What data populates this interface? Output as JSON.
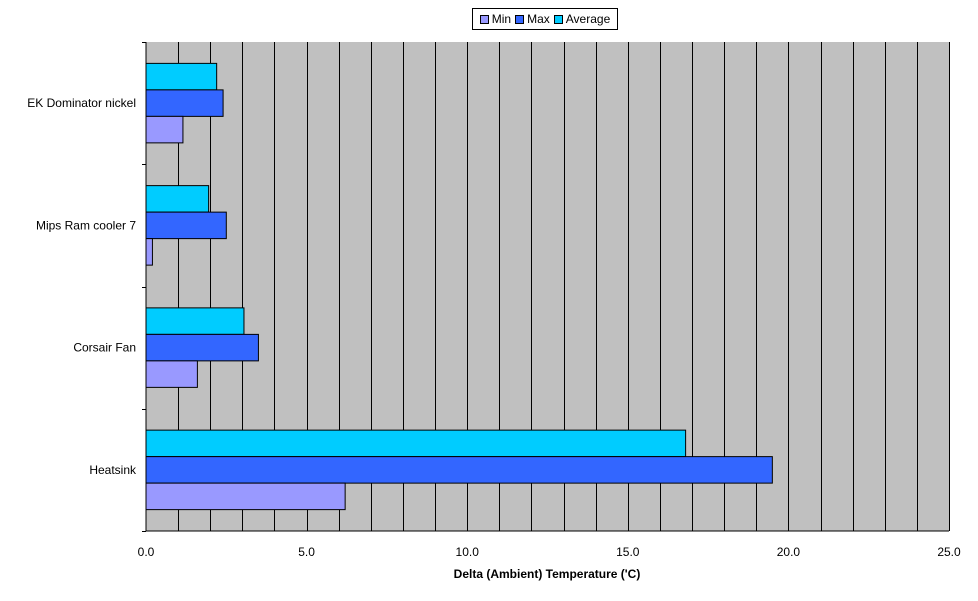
{
  "chart_data": {
    "type": "bar",
    "orientation": "horizontal",
    "categories": [
      "EK Dominator nickel",
      "Mips Ram cooler 7",
      "Corsair Fan",
      "Heatsink"
    ],
    "series": [
      {
        "name": "Min",
        "color": "#9999ff",
        "values": [
          1.15,
          0.2,
          1.6,
          6.2
        ]
      },
      {
        "name": "Max",
        "color": "#3366ff",
        "values": [
          2.4,
          2.5,
          3.5,
          19.5
        ]
      },
      {
        "name": "Average",
        "color": "#00ccff",
        "values": [
          2.2,
          1.95,
          3.05,
          16.8
        ]
      }
    ],
    "xlabel": "Delta (Ambient) Temperature ('C)",
    "ylabel": "",
    "xlim": [
      0,
      25
    ],
    "xticks": [
      "0.0",
      "5.0",
      "10.0",
      "15.0",
      "20.0",
      "25.0"
    ],
    "plot_background": "#c0c0c0",
    "grid": true,
    "legend_position": "top"
  }
}
